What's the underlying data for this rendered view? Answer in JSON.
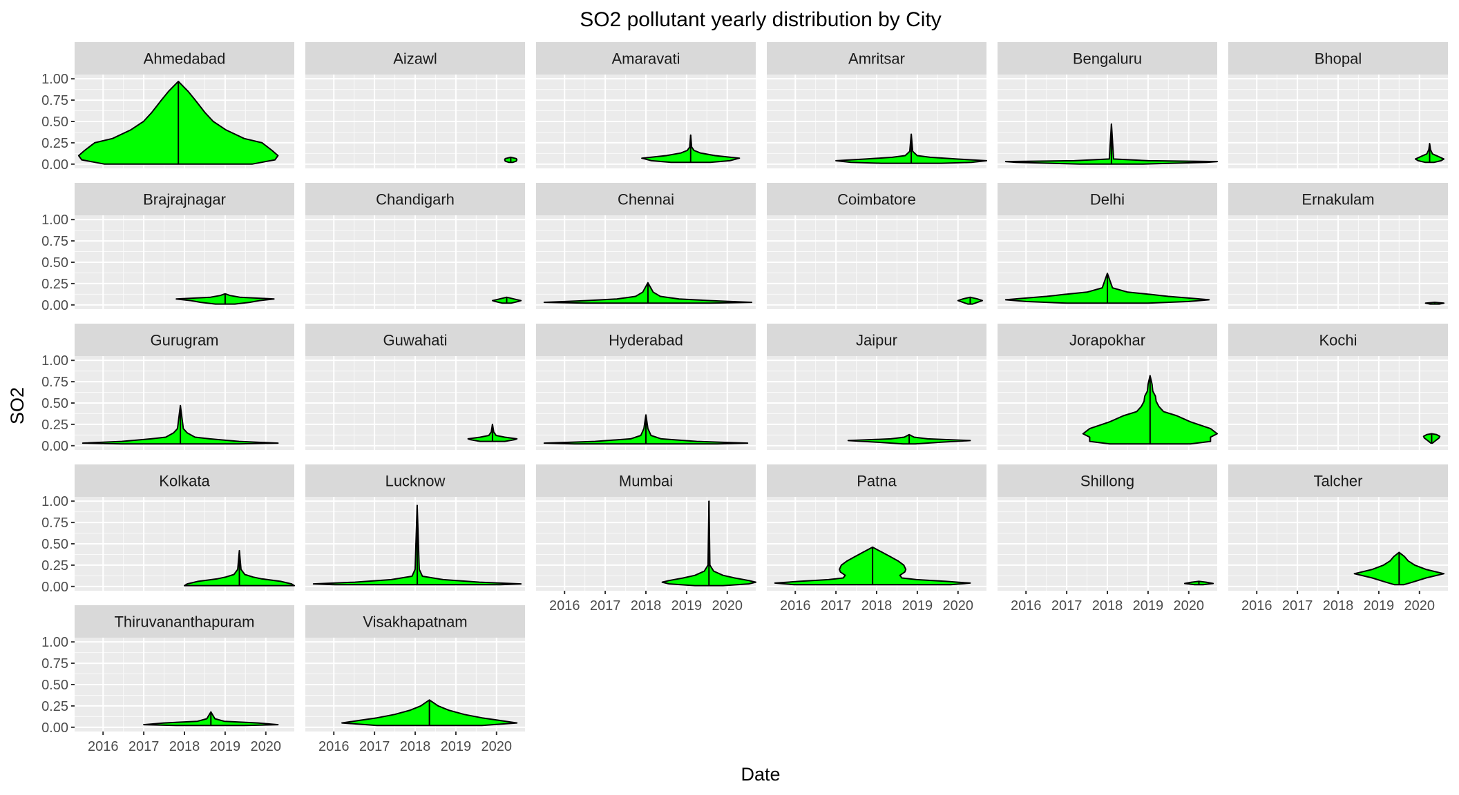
{
  "chart_data": {
    "type": "violin",
    "title": "SO2 pollutant yearly distribution by City",
    "xlabel": "Date",
    "ylabel": "SO2",
    "x_ticks": [
      "2016",
      "2017",
      "2018",
      "2019",
      "2020"
    ],
    "x_range": [
      2015.3,
      2020.7
    ],
    "y_ticks": [
      "0.00",
      "0.25",
      "0.50",
      "0.75",
      "1.00"
    ],
    "y_range": [
      -0.05,
      1.05
    ],
    "grid": true,
    "fill_color": "#00ff00",
    "outline_color": "#000000",
    "strip_color": "#d9d9d9",
    "panel_bg": "#ebebeb",
    "panels": [
      {
        "city": "Ahmedabad",
        "x_range": [
          2015.4,
          2020.3
        ],
        "y_min": 0.0,
        "y_max": 0.97,
        "max_width_y": 0.1,
        "profile": [
          [
            0.0,
            0.74
          ],
          [
            0.05,
            0.97
          ],
          [
            0.1,
            1.0
          ],
          [
            0.16,
            0.94
          ],
          [
            0.25,
            0.84
          ],
          [
            0.3,
            0.66
          ],
          [
            0.4,
            0.48
          ],
          [
            0.5,
            0.35
          ],
          [
            0.6,
            0.27
          ],
          [
            0.75,
            0.17
          ],
          [
            0.85,
            0.1
          ],
          [
            0.97,
            0.0
          ]
        ]
      },
      {
        "city": "Aizawl",
        "x_range": [
          2020.2,
          2020.5
        ],
        "y_min": 0.02,
        "y_max": 0.08,
        "max_width_y": 0.05,
        "profile": [
          [
            0.02,
            0.3
          ],
          [
            0.035,
            0.9
          ],
          [
            0.05,
            1.0
          ],
          [
            0.065,
            0.9
          ],
          [
            0.08,
            0.0
          ]
        ]
      },
      {
        "city": "Amaravati",
        "x_range": [
          2017.9,
          2020.3
        ],
        "y_min": 0.02,
        "y_max": 0.34,
        "max_width_y": 0.07,
        "profile": [
          [
            0.02,
            0.4
          ],
          [
            0.04,
            0.8
          ],
          [
            0.07,
            1.0
          ],
          [
            0.1,
            0.5
          ],
          [
            0.13,
            0.2
          ],
          [
            0.16,
            0.07
          ],
          [
            0.2,
            0.02
          ],
          [
            0.34,
            0.0
          ]
        ]
      },
      {
        "city": "Amritsar",
        "x_range": [
          2017.0,
          2020.7
        ],
        "y_min": 0.01,
        "y_max": 0.35,
        "max_width_y": 0.04,
        "profile": [
          [
            0.01,
            0.4
          ],
          [
            0.02,
            0.8
          ],
          [
            0.04,
            1.0
          ],
          [
            0.06,
            0.6
          ],
          [
            0.08,
            0.25
          ],
          [
            0.1,
            0.08
          ],
          [
            0.15,
            0.02
          ],
          [
            0.35,
            0.0
          ]
        ]
      },
      {
        "city": "Bengaluru",
        "x_range": [
          2015.5,
          2020.7
        ],
        "y_min": 0.0,
        "y_max": 0.47,
        "max_width_y": 0.03,
        "profile": [
          [
            0.0,
            0.3
          ],
          [
            0.02,
            0.9
          ],
          [
            0.03,
            1.0
          ],
          [
            0.04,
            0.35
          ],
          [
            0.06,
            0.02
          ],
          [
            0.47,
            0.0
          ]
        ]
      },
      {
        "city": "Bhopal",
        "x_range": [
          2019.9,
          2020.6
        ],
        "y_min": 0.02,
        "y_max": 0.24,
        "max_width_y": 0.06,
        "profile": [
          [
            0.02,
            0.3
          ],
          [
            0.04,
            0.8
          ],
          [
            0.06,
            1.0
          ],
          [
            0.09,
            0.6
          ],
          [
            0.12,
            0.2
          ],
          [
            0.17,
            0.06
          ],
          [
            0.24,
            0.0
          ]
        ]
      },
      {
        "city": "Brajrajnagar",
        "x_range": [
          2017.8,
          2020.2
        ],
        "y_min": 0.01,
        "y_max": 0.13,
        "max_width_y": 0.07,
        "profile": [
          [
            0.01,
            0.2
          ],
          [
            0.03,
            0.5
          ],
          [
            0.05,
            0.7
          ],
          [
            0.07,
            1.0
          ],
          [
            0.09,
            0.3
          ],
          [
            0.11,
            0.1
          ],
          [
            0.13,
            0.0
          ]
        ]
      },
      {
        "city": "Chandigarh",
        "x_range": [
          2019.9,
          2020.6
        ],
        "y_min": 0.02,
        "y_max": 0.09,
        "max_width_y": 0.05,
        "profile": [
          [
            0.02,
            0.3
          ],
          [
            0.04,
            0.8
          ],
          [
            0.05,
            1.0
          ],
          [
            0.07,
            0.5
          ],
          [
            0.09,
            0.0
          ]
        ]
      },
      {
        "city": "Chennai",
        "x_range": [
          2015.5,
          2020.6
        ],
        "y_min": 0.02,
        "y_max": 0.26,
        "max_width_y": 0.03,
        "profile": [
          [
            0.02,
            0.6
          ],
          [
            0.03,
            1.0
          ],
          [
            0.05,
            0.6
          ],
          [
            0.07,
            0.3
          ],
          [
            0.1,
            0.12
          ],
          [
            0.15,
            0.05
          ],
          [
            0.26,
            0.0
          ]
        ]
      },
      {
        "city": "Coimbatore",
        "x_range": [
          2020.0,
          2020.6
        ],
        "y_min": 0.01,
        "y_max": 0.09,
        "max_width_y": 0.05,
        "profile": [
          [
            0.01,
            0.2
          ],
          [
            0.03,
            0.6
          ],
          [
            0.05,
            1.0
          ],
          [
            0.07,
            0.6
          ],
          [
            0.09,
            0.0
          ]
        ]
      },
      {
        "city": "Delhi",
        "x_range": [
          2015.5,
          2020.5
        ],
        "y_min": 0.02,
        "y_max": 0.37,
        "max_width_y": 0.06,
        "profile": [
          [
            0.02,
            0.4
          ],
          [
            0.04,
            0.8
          ],
          [
            0.06,
            1.0
          ],
          [
            0.08,
            0.8
          ],
          [
            0.1,
            0.6
          ],
          [
            0.12,
            0.45
          ],
          [
            0.15,
            0.2
          ],
          [
            0.2,
            0.05
          ],
          [
            0.37,
            0.0
          ]
        ]
      },
      {
        "city": "Ernakulam",
        "x_range": [
          2020.15,
          2020.6
        ],
        "y_min": 0.01,
        "y_max": 0.03,
        "max_width_y": 0.02,
        "profile": [
          [
            0.01,
            0.5
          ],
          [
            0.02,
            1.0
          ],
          [
            0.03,
            0.0
          ]
        ]
      },
      {
        "city": "Gurugram",
        "x_range": [
          2015.5,
          2020.3
        ],
        "y_min": 0.02,
        "y_max": 0.47,
        "max_width_y": 0.03,
        "profile": [
          [
            0.02,
            0.6
          ],
          [
            0.03,
            1.0
          ],
          [
            0.05,
            0.6
          ],
          [
            0.08,
            0.3
          ],
          [
            0.1,
            0.15
          ],
          [
            0.15,
            0.07
          ],
          [
            0.2,
            0.03
          ],
          [
            0.47,
            0.0
          ]
        ]
      },
      {
        "city": "Guwahati",
        "x_range": [
          2019.3,
          2020.5
        ],
        "y_min": 0.05,
        "y_max": 0.25,
        "max_width_y": 0.08,
        "profile": [
          [
            0.05,
            0.5
          ],
          [
            0.07,
            0.9
          ],
          [
            0.08,
            1.0
          ],
          [
            0.1,
            0.5
          ],
          [
            0.12,
            0.15
          ],
          [
            0.16,
            0.05
          ],
          [
            0.25,
            0.0
          ]
        ]
      },
      {
        "city": "Hyderabad",
        "x_range": [
          2015.5,
          2020.5
        ],
        "y_min": 0.02,
        "y_max": 0.36,
        "max_width_y": 0.03,
        "profile": [
          [
            0.02,
            0.7
          ],
          [
            0.03,
            1.0
          ],
          [
            0.05,
            0.5
          ],
          [
            0.08,
            0.15
          ],
          [
            0.12,
            0.05
          ],
          [
            0.2,
            0.02
          ],
          [
            0.36,
            0.0
          ]
        ]
      },
      {
        "city": "Jaipur",
        "x_range": [
          2017.3,
          2020.3
        ],
        "y_min": 0.02,
        "y_max": 0.13,
        "max_width_y": 0.06,
        "profile": [
          [
            0.02,
            0.1
          ],
          [
            0.04,
            0.5
          ],
          [
            0.06,
            1.0
          ],
          [
            0.08,
            0.3
          ],
          [
            0.1,
            0.08
          ],
          [
            0.13,
            0.0
          ]
        ]
      },
      {
        "city": "Jorapokhar",
        "x_range": [
          2017.4,
          2020.7
        ],
        "y_min": 0.02,
        "y_max": 0.82,
        "max_width_y": 0.14,
        "profile": [
          [
            0.02,
            0.6
          ],
          [
            0.05,
            0.9
          ],
          [
            0.1,
            0.9
          ],
          [
            0.14,
            1.0
          ],
          [
            0.2,
            0.9
          ],
          [
            0.28,
            0.6
          ],
          [
            0.35,
            0.4
          ],
          [
            0.4,
            0.2
          ],
          [
            0.46,
            0.13
          ],
          [
            0.52,
            0.09
          ],
          [
            0.58,
            0.08
          ],
          [
            0.64,
            0.04
          ],
          [
            0.72,
            0.03
          ],
          [
            0.82,
            0.0
          ]
        ]
      },
      {
        "city": "Kochi",
        "x_range": [
          2020.1,
          2020.5
        ],
        "y_min": 0.03,
        "y_max": 0.14,
        "max_width_y": 0.11,
        "profile": [
          [
            0.03,
            0.1
          ],
          [
            0.06,
            0.5
          ],
          [
            0.09,
            0.9
          ],
          [
            0.11,
            1.0
          ],
          [
            0.13,
            0.6
          ],
          [
            0.14,
            0.0
          ]
        ]
      },
      {
        "city": "Kolkata",
        "x_range": [
          2018.0,
          2020.7
        ],
        "y_min": 0.01,
        "y_max": 0.42,
        "max_width_y": 0.03,
        "profile": [
          [
            0.01,
            1.0
          ],
          [
            0.03,
            0.95
          ],
          [
            0.06,
            0.75
          ],
          [
            0.09,
            0.4
          ],
          [
            0.11,
            0.25
          ],
          [
            0.14,
            0.1
          ],
          [
            0.2,
            0.03
          ],
          [
            0.42,
            0.0
          ]
        ]
      },
      {
        "city": "Lucknow",
        "x_range": [
          2015.5,
          2020.6
        ],
        "y_min": 0.02,
        "y_max": 0.95,
        "max_width_y": 0.03,
        "profile": [
          [
            0.02,
            0.8
          ],
          [
            0.03,
            1.0
          ],
          [
            0.05,
            0.6
          ],
          [
            0.08,
            0.25
          ],
          [
            0.12,
            0.05
          ],
          [
            0.2,
            0.02
          ],
          [
            0.95,
            0.0
          ]
        ]
      },
      {
        "city": "Mumbai",
        "x_range": [
          2018.4,
          2020.7
        ],
        "y_min": 0.01,
        "y_max": 1.0,
        "max_width_y": 0.05,
        "profile": [
          [
            0.01,
            0.3
          ],
          [
            0.03,
            0.85
          ],
          [
            0.05,
            1.0
          ],
          [
            0.07,
            0.85
          ],
          [
            0.1,
            0.55
          ],
          [
            0.13,
            0.3
          ],
          [
            0.18,
            0.1
          ],
          [
            0.25,
            0.02
          ],
          [
            1.0,
            0.0
          ]
        ]
      },
      {
        "city": "Patna",
        "x_range": [
          2015.5,
          2020.3
        ],
        "y_min": 0.02,
        "y_max": 0.46,
        "max_width_y": 0.04,
        "profile": [
          [
            0.02,
            0.8
          ],
          [
            0.04,
            1.0
          ],
          [
            0.06,
            0.75
          ],
          [
            0.08,
            0.45
          ],
          [
            0.1,
            0.3
          ],
          [
            0.13,
            0.28
          ],
          [
            0.17,
            0.33
          ],
          [
            0.2,
            0.34
          ],
          [
            0.25,
            0.32
          ],
          [
            0.3,
            0.26
          ],
          [
            0.35,
            0.18
          ],
          [
            0.4,
            0.1
          ],
          [
            0.46,
            0.0
          ]
        ]
      },
      {
        "city": "Shillong",
        "x_range": [
          2019.9,
          2020.6
        ],
        "y_min": 0.02,
        "y_max": 0.06,
        "max_width_y": 0.035,
        "profile": [
          [
            0.02,
            0.3
          ],
          [
            0.035,
            1.0
          ],
          [
            0.05,
            0.5
          ],
          [
            0.06,
            0.0
          ]
        ]
      },
      {
        "city": "Talcher",
        "x_range": [
          2018.4,
          2020.6
        ],
        "y_min": 0.02,
        "y_max": 0.4,
        "max_width_y": 0.15,
        "profile": [
          [
            0.02,
            0.1
          ],
          [
            0.05,
            0.3
          ],
          [
            0.1,
            0.6
          ],
          [
            0.15,
            1.0
          ],
          [
            0.2,
            0.6
          ],
          [
            0.25,
            0.35
          ],
          [
            0.3,
            0.2
          ],
          [
            0.35,
            0.12
          ],
          [
            0.4,
            0.0
          ]
        ]
      },
      {
        "city": "Thiruvananthapuram",
        "x_range": [
          2017.0,
          2020.3
        ],
        "y_min": 0.02,
        "y_max": 0.18,
        "max_width_y": 0.03,
        "profile": [
          [
            0.02,
            0.5
          ],
          [
            0.03,
            1.0
          ],
          [
            0.05,
            0.7
          ],
          [
            0.07,
            0.2
          ],
          [
            0.1,
            0.06
          ],
          [
            0.18,
            0.0
          ]
        ]
      },
      {
        "city": "Visakhapatnam",
        "x_range": [
          2016.2,
          2020.5
        ],
        "y_min": 0.02,
        "y_max": 0.32,
        "max_width_y": 0.05,
        "profile": [
          [
            0.02,
            0.6
          ],
          [
            0.05,
            1.0
          ],
          [
            0.08,
            0.8
          ],
          [
            0.11,
            0.6
          ],
          [
            0.15,
            0.4
          ],
          [
            0.2,
            0.22
          ],
          [
            0.25,
            0.1
          ],
          [
            0.32,
            0.0
          ]
        ]
      }
    ]
  }
}
